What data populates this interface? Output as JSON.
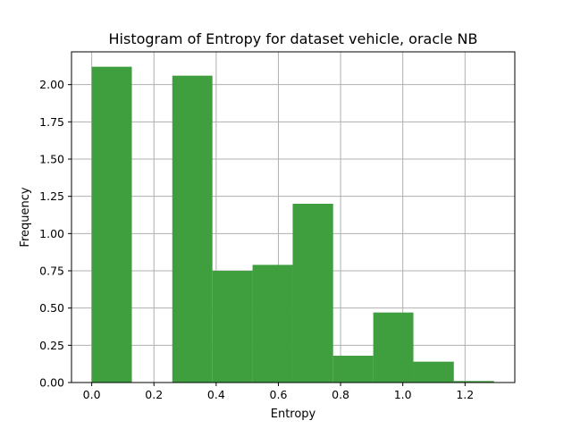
{
  "chart_data": {
    "type": "bar",
    "title": "Histogram of Entropy for dataset vehicle, oracle NB",
    "xlabel": "Entropy",
    "ylabel": "Frequency",
    "xlim": [
      -0.065,
      1.36
    ],
    "ylim": [
      0,
      2.22
    ],
    "grid": true,
    "bar_color": "#3f9f3f",
    "x_ticks": [
      {
        "value": 0.0,
        "label": "0.0"
      },
      {
        "value": 0.2,
        "label": "0.2"
      },
      {
        "value": 0.4,
        "label": "0.4"
      },
      {
        "value": 0.6,
        "label": "0.6"
      },
      {
        "value": 0.8,
        "label": "0.8"
      },
      {
        "value": 1.0,
        "label": "1.0"
      },
      {
        "value": 1.2,
        "label": "1.2"
      }
    ],
    "y_ticks": [
      {
        "value": 0.0,
        "label": "0.00"
      },
      {
        "value": 0.25,
        "label": "0.25"
      },
      {
        "value": 0.5,
        "label": "0.50"
      },
      {
        "value": 0.75,
        "label": "0.75"
      },
      {
        "value": 1.0,
        "label": "1.00"
      },
      {
        "value": 1.25,
        "label": "1.25"
      },
      {
        "value": 1.5,
        "label": "1.50"
      },
      {
        "value": 1.75,
        "label": "1.75"
      },
      {
        "value": 2.0,
        "label": "2.00"
      }
    ],
    "bins": [
      {
        "x0": 0.0,
        "x1": 0.129,
        "value": 2.12
      },
      {
        "x0": 0.129,
        "x1": 0.259,
        "value": 0.0
      },
      {
        "x0": 0.259,
        "x1": 0.388,
        "value": 2.06
      },
      {
        "x0": 0.388,
        "x1": 0.517,
        "value": 0.75
      },
      {
        "x0": 0.517,
        "x1": 0.646,
        "value": 0.79
      },
      {
        "x0": 0.646,
        "x1": 0.776,
        "value": 1.2
      },
      {
        "x0": 0.776,
        "x1": 0.905,
        "value": 0.18
      },
      {
        "x0": 0.905,
        "x1": 1.034,
        "value": 0.47
      },
      {
        "x0": 1.034,
        "x1": 1.164,
        "value": 0.14
      },
      {
        "x0": 1.164,
        "x1": 1.293,
        "value": 0.01
      }
    ]
  }
}
